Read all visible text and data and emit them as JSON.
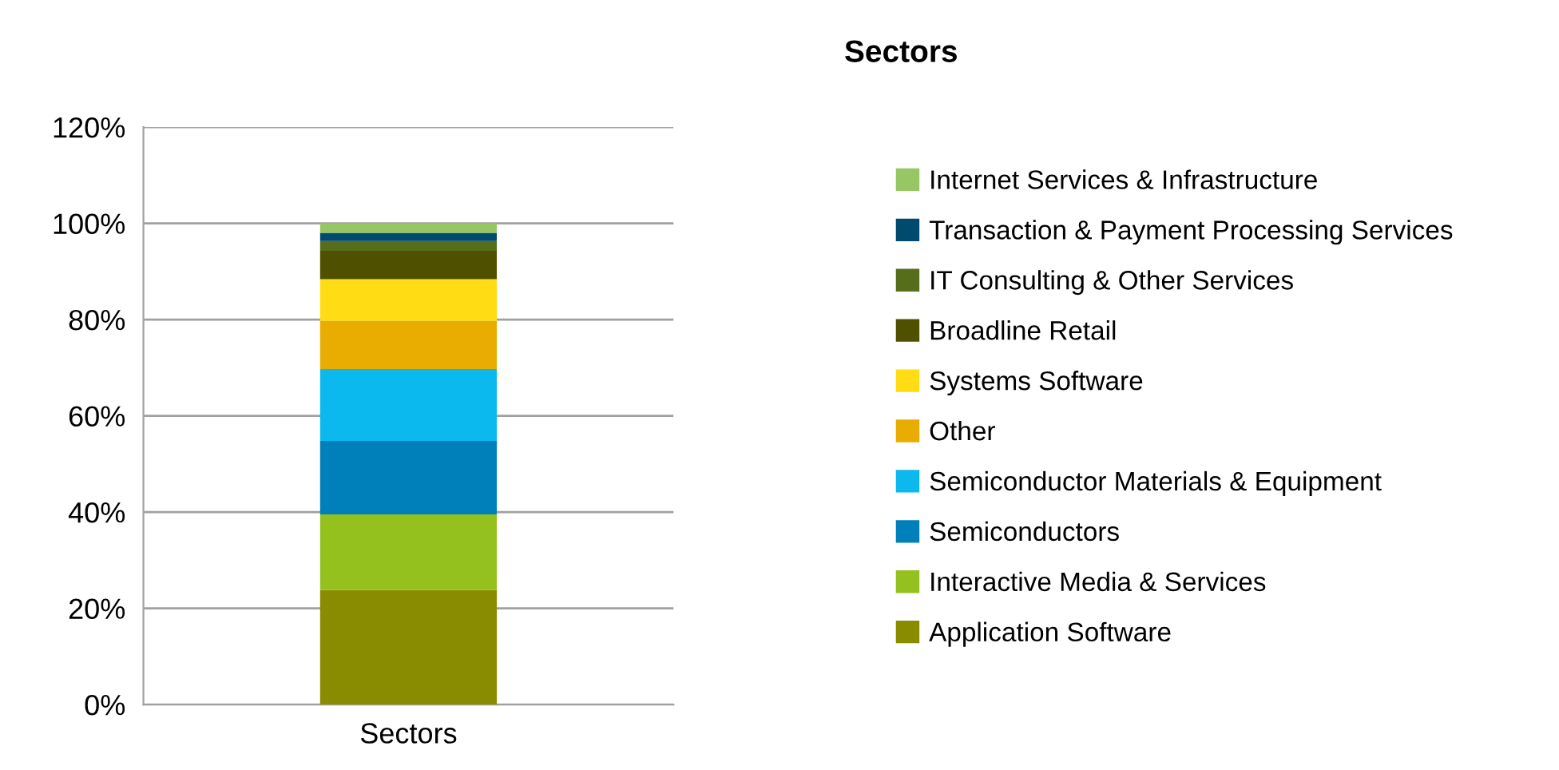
{
  "chart_data": {
    "type": "bar",
    "title": "Sectors",
    "stacked": true,
    "categories": [
      "Sectors"
    ],
    "series": [
      {
        "name": "Application Software",
        "color": "#8a8c00",
        "values": [
          23.8
        ]
      },
      {
        "name": "Interactive Media & Services",
        "color": "#95c11f",
        "values": [
          15.7
        ]
      },
      {
        "name": "Semiconductors",
        "color": "#0080ba",
        "values": [
          15.3
        ]
      },
      {
        "name": "Semiconductor Materials & Equipment",
        "color": "#0cb9ee",
        "values": [
          14.9
        ]
      },
      {
        "name": "Other",
        "color": "#e8ad00",
        "values": [
          10.0
        ]
      },
      {
        "name": "Systems Software",
        "color": "#ffdc13",
        "values": [
          8.7
        ]
      },
      {
        "name": "Broadline Retail",
        "color": "#4f5000",
        "values": [
          5.9
        ]
      },
      {
        "name": "IT Consulting & Other Services",
        "color": "#566d1b",
        "values": [
          2.0
        ]
      },
      {
        "name": "Transaction & Payment Processing Services",
        "color": "#004a6e",
        "values": [
          1.7
        ]
      },
      {
        "name": "Internet Services & Infrastructure",
        "color": "#97c764",
        "values": [
          2.0
        ]
      }
    ],
    "ylim": [
      0,
      120
    ],
    "yticks": [
      {
        "value": 0,
        "label": "0%"
      },
      {
        "value": 20,
        "label": "20%"
      },
      {
        "value": 40,
        "label": "40%"
      },
      {
        "value": 60,
        "label": "60%"
      },
      {
        "value": 80,
        "label": "80%"
      },
      {
        "value": 100,
        "label": "100%"
      },
      {
        "value": 120,
        "label": "120%"
      }
    ],
    "grid": "y",
    "legend": "right"
  }
}
